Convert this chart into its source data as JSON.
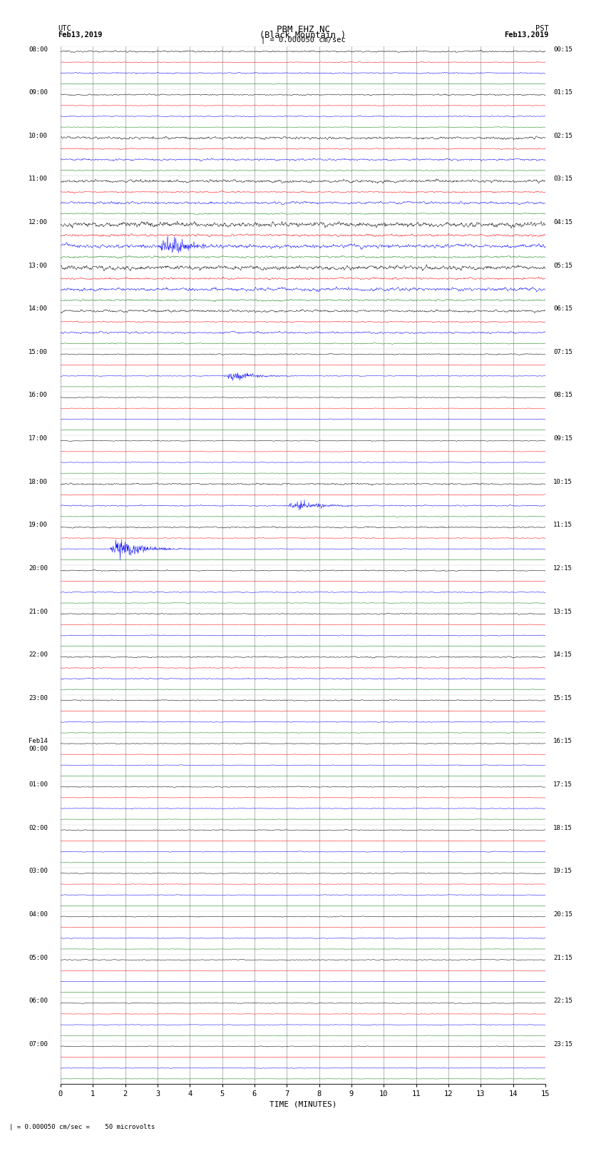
{
  "title_line1": "PBM EHZ NC",
  "title_line2": "(Black Mountain )",
  "scale_text": "| = 0.000050 cm/sec",
  "left_header_line1": "UTC",
  "left_header_line2": "Feb13,2019",
  "right_header_line1": "PST",
  "right_header_line2": "Feb13,2019",
  "bottom_label": "TIME (MINUTES)",
  "calibration_text": "| = 0.000050 cm/sec =    50 microvolts",
  "x_min": 0,
  "x_max": 15,
  "x_ticks": [
    0,
    1,
    2,
    3,
    4,
    5,
    6,
    7,
    8,
    9,
    10,
    11,
    12,
    13,
    14,
    15
  ],
  "trace_colors": [
    "black",
    "red",
    "blue",
    "green"
  ],
  "background_color": "white",
  "grid_color": "#888888",
  "num_hours": 24,
  "traces_per_hour": 4,
  "utc_labels": [
    "08:00",
    "09:00",
    "10:00",
    "11:00",
    "12:00",
    "13:00",
    "14:00",
    "15:00",
    "16:00",
    "17:00",
    "18:00",
    "19:00",
    "20:00",
    "21:00",
    "22:00",
    "23:00",
    "Feb14\n00:00",
    "01:00",
    "02:00",
    "03:00",
    "04:00",
    "05:00",
    "06:00",
    "07:00"
  ],
  "pst_labels": [
    "00:15",
    "01:15",
    "02:15",
    "03:15",
    "04:15",
    "05:15",
    "06:15",
    "07:15",
    "08:15",
    "09:15",
    "10:15",
    "11:15",
    "12:15",
    "13:15",
    "14:15",
    "15:15",
    "16:15",
    "17:15",
    "18:15",
    "19:15",
    "20:15",
    "21:15",
    "22:15",
    "23:15"
  ],
  "noise_levels": [
    0.12,
    0.1,
    0.18,
    0.22,
    0.35,
    0.3,
    0.18,
    0.08,
    0.06,
    0.06,
    0.12,
    0.1,
    0.08,
    0.08,
    0.1,
    0.08,
    0.07,
    0.07,
    0.07,
    0.06,
    0.06,
    0.06,
    0.06,
    0.06
  ],
  "blue_spike_hour": 11,
  "blue_spike_minute": 1.5
}
